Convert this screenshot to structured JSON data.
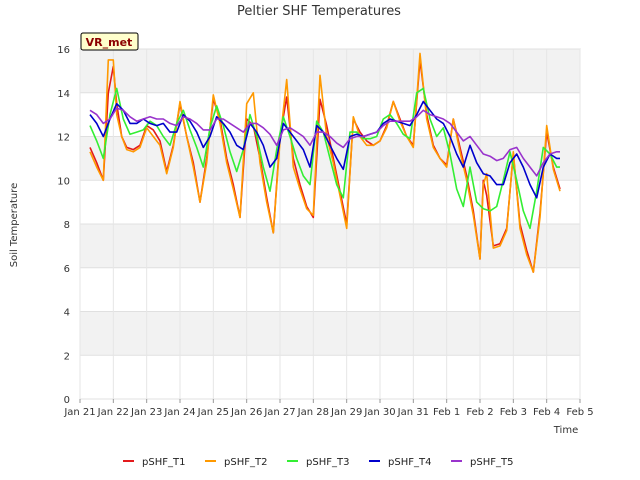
{
  "chart_data": {
    "type": "line",
    "title": "Peltier SHF Temperatures",
    "xlabel": "Time",
    "ylabel": "Soil Temperature",
    "badge": "VR_met",
    "ylim": [
      0,
      16
    ],
    "yticks": [
      0,
      2,
      4,
      6,
      8,
      10,
      12,
      14,
      16
    ],
    "xlim": [
      0,
      15
    ],
    "xticks": [
      {
        "v": 0,
        "label": "Jan 21"
      },
      {
        "v": 1,
        "label": "Jan 22"
      },
      {
        "v": 2,
        "label": "Jan 23"
      },
      {
        "v": 3,
        "label": "Jan 24"
      },
      {
        "v": 4,
        "label": "Jan 25"
      },
      {
        "v": 5,
        "label": "Jan 26"
      },
      {
        "v": 6,
        "label": "Jan 27"
      },
      {
        "v": 7,
        "label": "Jan 28"
      },
      {
        "v": 8,
        "label": "Jan 29"
      },
      {
        "v": 9,
        "label": "Jan 30"
      },
      {
        "v": 10,
        "label": "Jan 31"
      },
      {
        "v": 11,
        "label": "Feb 1"
      },
      {
        "v": 12,
        "label": "Feb 2"
      },
      {
        "v": 13,
        "label": "Feb 3"
      },
      {
        "v": 14,
        "label": "Feb 4"
      },
      {
        "v": 15,
        "label": "Feb 5"
      }
    ],
    "grid": true,
    "legend_position": "bottom",
    "series": [
      {
        "name": "pSHF_T1",
        "color": "#e31a1c",
        "x": [
          0.3,
          0.5,
          0.7,
          0.85,
          1.0,
          1.1,
          1.25,
          1.4,
          1.6,
          1.8,
          2.0,
          2.2,
          2.4,
          2.6,
          2.8,
          3.0,
          3.2,
          3.4,
          3.6,
          3.8,
          4.0,
          4.2,
          4.4,
          4.6,
          4.8,
          5.0,
          5.2,
          5.4,
          5.6,
          5.8,
          6.0,
          6.2,
          6.4,
          6.6,
          6.8,
          7.0,
          7.2,
          7.4,
          7.6,
          7.8,
          8.0,
          8.2,
          8.4,
          8.6,
          8.8,
          9.0,
          9.2,
          9.4,
          9.6,
          9.8,
          10.0,
          10.2,
          10.4,
          10.6,
          10.8,
          11.0,
          11.2,
          11.4,
          11.6,
          11.8,
          12.0,
          12.1,
          12.2,
          12.4,
          12.6,
          12.8,
          13.0,
          13.2,
          13.4,
          13.6,
          13.8,
          14.0,
          14.2,
          14.4
        ],
        "y": [
          11.5,
          10.8,
          10.0,
          14.0,
          15.2,
          13.5,
          12.0,
          11.5,
          11.4,
          11.6,
          12.5,
          12.3,
          11.8,
          10.4,
          11.6,
          13.5,
          12.0,
          10.8,
          9.0,
          11.0,
          13.7,
          12.8,
          11.0,
          9.8,
          8.3,
          12.8,
          12.5,
          11.0,
          9.2,
          7.6,
          12.0,
          13.8,
          11.0,
          9.8,
          8.8,
          8.3,
          13.7,
          12.5,
          11.0,
          9.5,
          8.0,
          12.8,
          12.2,
          11.8,
          11.6,
          11.8,
          12.5,
          13.6,
          12.8,
          12.0,
          11.6,
          15.5,
          13.0,
          11.6,
          11.0,
          10.7,
          12.8,
          11.5,
          10.2,
          8.6,
          6.4,
          10.0,
          9.3,
          7.0,
          7.1,
          7.8,
          11.2,
          8.0,
          6.8,
          5.8,
          8.5,
          12.2,
          10.6,
          9.6
        ]
      },
      {
        "name": "pSHF_T2",
        "color": "#ff9900",
        "x": [
          0.3,
          0.5,
          0.7,
          0.85,
          1.0,
          1.1,
          1.25,
          1.4,
          1.6,
          1.8,
          2.0,
          2.2,
          2.4,
          2.6,
          2.8,
          3.0,
          3.2,
          3.4,
          3.6,
          3.8,
          4.0,
          4.2,
          4.4,
          4.6,
          4.8,
          5.0,
          5.2,
          5.4,
          5.6,
          5.8,
          6.0,
          6.2,
          6.4,
          6.6,
          6.8,
          7.0,
          7.2,
          7.4,
          7.6,
          7.8,
          8.0,
          8.2,
          8.4,
          8.6,
          8.8,
          9.0,
          9.2,
          9.4,
          9.6,
          9.8,
          10.0,
          10.2,
          10.4,
          10.6,
          10.8,
          11.0,
          11.2,
          11.4,
          11.6,
          11.8,
          12.0,
          12.1,
          12.2,
          12.4,
          12.6,
          12.8,
          13.0,
          13.2,
          13.4,
          13.6,
          13.8,
          14.0,
          14.2,
          14.4
        ],
        "y": [
          11.3,
          10.6,
          10.0,
          15.5,
          15.5,
          13.0,
          12.0,
          11.4,
          11.3,
          11.5,
          12.4,
          12.0,
          11.6,
          10.3,
          11.5,
          13.6,
          12.0,
          10.6,
          9.0,
          10.8,
          13.9,
          12.6,
          10.8,
          9.6,
          8.3,
          13.5,
          14.0,
          10.8,
          9.0,
          7.6,
          11.8,
          14.6,
          10.6,
          9.6,
          8.7,
          8.4,
          14.8,
          12.0,
          10.8,
          9.3,
          7.8,
          12.9,
          12.0,
          11.6,
          11.6,
          11.8,
          12.4,
          13.6,
          12.7,
          12.0,
          11.5,
          15.8,
          12.8,
          11.5,
          11.0,
          10.6,
          12.8,
          11.3,
          10.0,
          8.4,
          6.4,
          9.8,
          10.3,
          6.9,
          7.0,
          7.7,
          11.3,
          7.8,
          6.6,
          5.8,
          8.3,
          12.5,
          10.5,
          9.5
        ]
      },
      {
        "name": "pSHF_T3",
        "color": "#33ee33",
        "x": [
          0.3,
          0.5,
          0.7,
          0.9,
          1.1,
          1.3,
          1.5,
          1.7,
          1.9,
          2.1,
          2.3,
          2.5,
          2.7,
          2.9,
          3.1,
          3.3,
          3.5,
          3.7,
          3.9,
          4.1,
          4.3,
          4.5,
          4.7,
          4.9,
          5.1,
          5.3,
          5.5,
          5.7,
          5.9,
          6.1,
          6.3,
          6.5,
          6.7,
          6.9,
          7.1,
          7.3,
          7.5,
          7.7,
          7.9,
          8.1,
          8.3,
          8.5,
          8.7,
          8.9,
          9.1,
          9.3,
          9.5,
          9.7,
          9.9,
          10.1,
          10.3,
          10.5,
          10.7,
          10.9,
          11.1,
          11.3,
          11.5,
          11.7,
          11.9,
          12.1,
          12.3,
          12.5,
          12.7,
          12.9,
          13.1,
          13.3,
          13.5,
          13.7,
          13.9,
          14.1,
          14.3,
          14.4
        ],
        "y": [
          12.5,
          11.8,
          11.0,
          13.0,
          14.2,
          12.8,
          12.1,
          12.2,
          12.3,
          12.7,
          12.5,
          12.0,
          11.6,
          12.6,
          13.2,
          12.3,
          11.5,
          10.6,
          12.4,
          13.4,
          12.5,
          11.3,
          10.4,
          11.4,
          13.0,
          12.0,
          10.6,
          9.5,
          11.4,
          12.9,
          12.0,
          11.0,
          10.2,
          9.8,
          12.7,
          12.2,
          11.0,
          9.8,
          9.2,
          12.2,
          12.2,
          11.9,
          11.9,
          12.0,
          12.8,
          13.0,
          12.6,
          12.1,
          11.9,
          14.0,
          14.2,
          12.8,
          12.0,
          12.4,
          11.2,
          9.6,
          8.8,
          10.6,
          9.0,
          8.7,
          8.6,
          8.8,
          10.0,
          11.3,
          10.0,
          8.6,
          7.8,
          9.5,
          11.5,
          11.2,
          10.6,
          10.6
        ]
      },
      {
        "name": "pSHF_T4",
        "color": "#0000cc",
        "x": [
          0.3,
          0.5,
          0.7,
          0.9,
          1.1,
          1.3,
          1.5,
          1.7,
          1.9,
          2.1,
          2.3,
          2.5,
          2.7,
          2.9,
          3.1,
          3.3,
          3.5,
          3.7,
          3.9,
          4.1,
          4.3,
          4.5,
          4.7,
          4.9,
          5.1,
          5.3,
          5.5,
          5.7,
          5.9,
          6.1,
          6.3,
          6.5,
          6.7,
          6.9,
          7.1,
          7.3,
          7.5,
          7.7,
          7.9,
          8.1,
          8.3,
          8.5,
          8.7,
          8.9,
          9.1,
          9.3,
          9.5,
          9.7,
          9.9,
          10.1,
          10.3,
          10.5,
          10.7,
          10.9,
          11.1,
          11.3,
          11.5,
          11.7,
          11.9,
          12.1,
          12.3,
          12.5,
          12.7,
          12.9,
          13.1,
          13.3,
          13.5,
          13.7,
          13.9,
          14.1,
          14.3,
          14.4
        ],
        "y": [
          13.0,
          12.6,
          12.0,
          12.8,
          13.5,
          13.2,
          12.6,
          12.6,
          12.8,
          12.6,
          12.5,
          12.6,
          12.2,
          12.2,
          13.0,
          12.7,
          12.2,
          11.5,
          12.0,
          12.9,
          12.6,
          12.2,
          11.6,
          11.4,
          12.6,
          12.2,
          11.6,
          10.6,
          11.0,
          12.6,
          12.2,
          11.8,
          11.4,
          10.6,
          12.5,
          12.2,
          11.6,
          11.0,
          10.5,
          12.0,
          12.1,
          12.0,
          12.1,
          12.2,
          12.6,
          12.8,
          12.7,
          12.6,
          12.5,
          13.0,
          13.6,
          13.2,
          12.8,
          12.6,
          12.0,
          11.2,
          10.6,
          11.6,
          10.8,
          10.3,
          10.2,
          9.8,
          9.8,
          10.8,
          11.2,
          10.6,
          9.8,
          9.2,
          10.6,
          11.2,
          11.0,
          11.0
        ]
      },
      {
        "name": "pSHF_T5",
        "color": "#9933cc",
        "x": [
          0.3,
          0.5,
          0.7,
          0.9,
          1.1,
          1.3,
          1.5,
          1.7,
          1.9,
          2.1,
          2.3,
          2.5,
          2.7,
          2.9,
          3.1,
          3.3,
          3.5,
          3.7,
          3.9,
          4.1,
          4.3,
          4.5,
          4.7,
          4.9,
          5.1,
          5.3,
          5.5,
          5.7,
          5.9,
          6.1,
          6.3,
          6.5,
          6.7,
          6.9,
          7.1,
          7.3,
          7.5,
          7.7,
          7.9,
          8.1,
          8.3,
          8.5,
          8.7,
          8.9,
          9.1,
          9.3,
          9.5,
          9.7,
          9.9,
          10.1,
          10.3,
          10.5,
          10.7,
          10.9,
          11.1,
          11.3,
          11.5,
          11.7,
          11.9,
          12.1,
          12.3,
          12.5,
          12.7,
          12.9,
          13.1,
          13.3,
          13.5,
          13.7,
          13.9,
          14.1,
          14.3,
          14.4
        ],
        "y": [
          13.2,
          13.0,
          12.6,
          12.8,
          13.3,
          13.2,
          12.9,
          12.7,
          12.8,
          12.9,
          12.8,
          12.8,
          12.6,
          12.5,
          12.9,
          12.8,
          12.6,
          12.3,
          12.3,
          12.8,
          12.8,
          12.6,
          12.4,
          12.2,
          12.6,
          12.6,
          12.4,
          12.1,
          11.6,
          12.3,
          12.4,
          12.2,
          12.0,
          11.6,
          12.2,
          12.2,
          12.0,
          11.7,
          11.5,
          11.9,
          12.0,
          12.0,
          12.1,
          12.2,
          12.5,
          12.7,
          12.7,
          12.7,
          12.7,
          12.9,
          13.2,
          13.0,
          12.9,
          12.8,
          12.6,
          12.2,
          11.8,
          12.0,
          11.6,
          11.2,
          11.1,
          10.9,
          11.0,
          11.4,
          11.5,
          11.0,
          10.6,
          10.2,
          10.8,
          11.2,
          11.3,
          11.3
        ]
      }
    ]
  }
}
